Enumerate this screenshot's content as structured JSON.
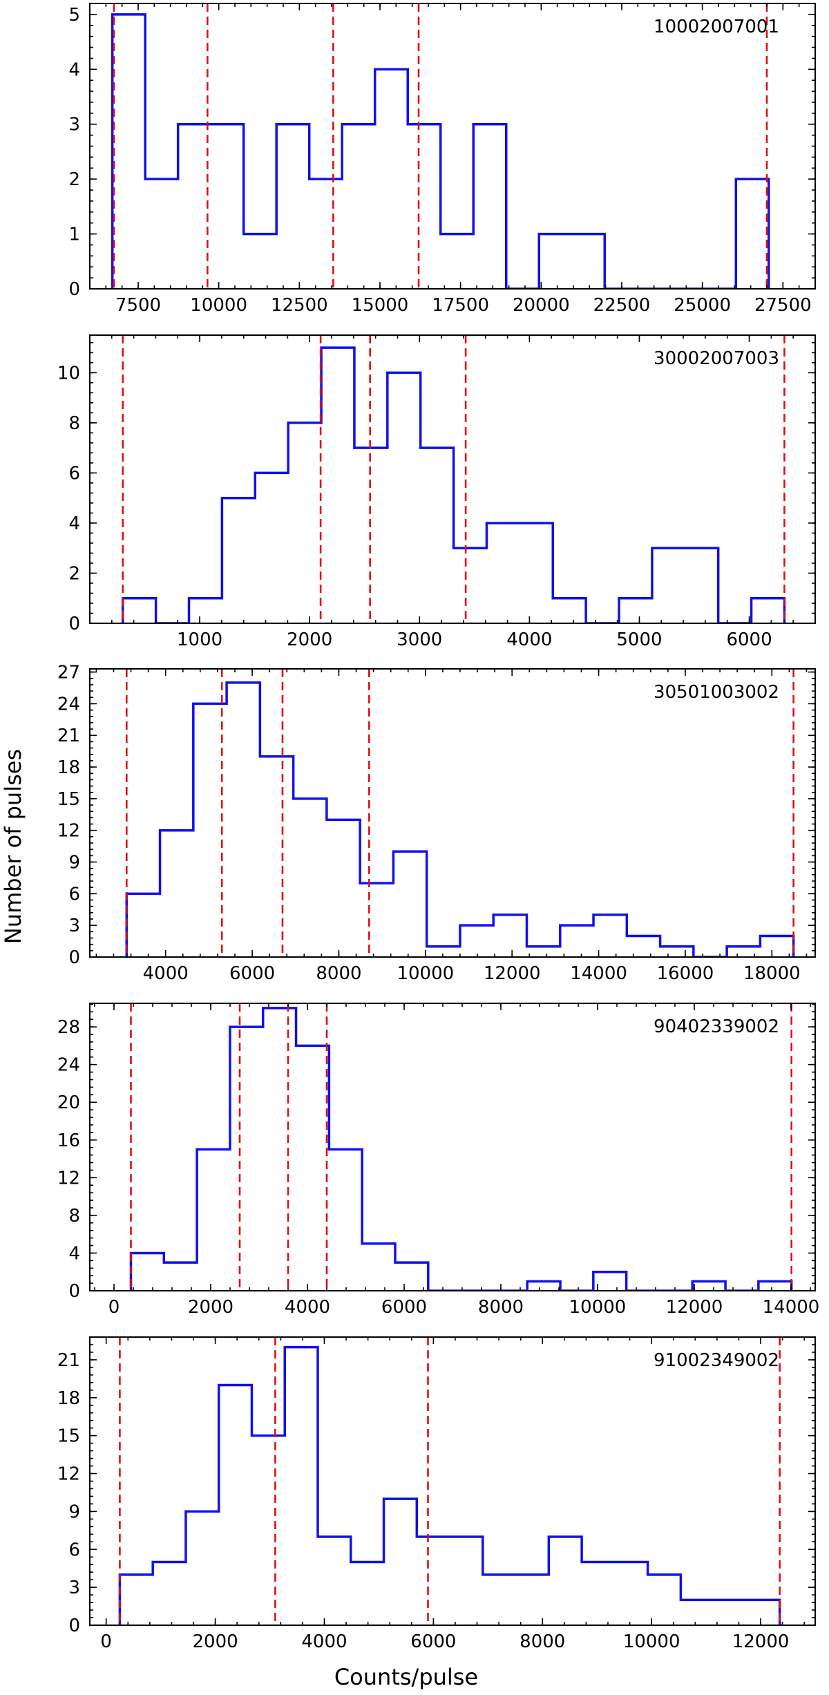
{
  "figure": {
    "xlabel": "Counts/pulse",
    "ylabel": "Number of pulses",
    "colors": {
      "histogram": "#1010ee",
      "boundary": "#e01010",
      "axes": "#000000"
    }
  },
  "chart_data": [
    {
      "type": "bar",
      "title": "10002007001",
      "xlim": [
        6000,
        28500
      ],
      "ylim": [
        0,
        5.2
      ],
      "xticks": [
        7500,
        10000,
        12500,
        15000,
        17500,
        20000,
        22500,
        25000,
        27500
      ],
      "yticks": [
        0,
        1,
        2,
        3,
        4,
        5
      ],
      "bin_edges": [
        6700,
        7718,
        8736,
        9754,
        10772,
        11790,
        12808,
        13826,
        14844,
        15862,
        16880,
        17898,
        18916,
        19934,
        20952,
        21970,
        22988,
        24006,
        25024,
        26042,
        27060
      ],
      "counts": [
        5,
        2,
        3,
        3,
        1,
        3,
        2,
        3,
        4,
        3,
        1,
        3,
        0,
        1,
        1,
        0,
        0,
        0,
        0,
        2
      ],
      "vlines": [
        6750,
        9650,
        13550,
        16200,
        27000
      ]
    },
    {
      "type": "bar",
      "title": "30002007003",
      "xlim": [
        0,
        6600
      ],
      "ylim": [
        0,
        11.5
      ],
      "xticks": [
        1000,
        2000,
        3000,
        4000,
        5000,
        6000
      ],
      "yticks": [
        0,
        2,
        4,
        6,
        8,
        10
      ],
      "bin_edges": [
        300,
        601,
        902,
        1203,
        1504,
        1805,
        2106,
        2407,
        2708,
        3009,
        3310,
        3611,
        3912,
        4213,
        4514,
        4815,
        5116,
        5417,
        5718,
        6019,
        6320
      ],
      "counts": [
        1,
        0,
        1,
        5,
        6,
        8,
        11,
        7,
        10,
        7,
        3,
        4,
        4,
        1,
        0,
        1,
        3,
        3,
        0,
        1
      ],
      "vlines": [
        300,
        2100,
        2550,
        3420,
        6320
      ]
    },
    {
      "type": "bar",
      "title": "30501003002",
      "xlim": [
        2250,
        19000
      ],
      "ylim": [
        0,
        27.3
      ],
      "xticks": [
        4000,
        6000,
        8000,
        10000,
        12000,
        14000,
        16000,
        18000
      ],
      "yticks": [
        0,
        3,
        6,
        9,
        12,
        15,
        18,
        21,
        24,
        27
      ],
      "bin_edges": [
        3100,
        3870,
        4640,
        5410,
        6180,
        6950,
        7720,
        8490,
        9260,
        10030,
        10800,
        11570,
        12340,
        13110,
        13880,
        14650,
        15420,
        16190,
        16960,
        17730,
        18500
      ],
      "counts": [
        6,
        12,
        24,
        26,
        19,
        15,
        13,
        7,
        10,
        1,
        3,
        4,
        1,
        3,
        4,
        2,
        1,
        0,
        1,
        2
      ],
      "vlines": [
        3100,
        5300,
        6700,
        8700,
        18500
      ]
    },
    {
      "type": "bar",
      "title": "90402339002",
      "xlim": [
        -500,
        14500
      ],
      "ylim": [
        0,
        30.5
      ],
      "xticks": [
        0,
        2000,
        4000,
        6000,
        8000,
        10000,
        12000,
        14000
      ],
      "yticks": [
        0,
        4,
        8,
        12,
        16,
        20,
        24,
        28
      ],
      "bin_edges": [
        350,
        1033,
        1716,
        2399,
        3082,
        3765,
        4448,
        5131,
        5814,
        6497,
        7180,
        7863,
        8546,
        9229,
        9912,
        10595,
        11278,
        11961,
        12644,
        13327,
        14010
      ],
      "counts": [
        4,
        3,
        15,
        28,
        30,
        26,
        15,
        5,
        3,
        0,
        0,
        0,
        1,
        0,
        2,
        0,
        0,
        1,
        0,
        1
      ],
      "vlines": [
        350,
        2600,
        3600,
        4400,
        14010
      ]
    },
    {
      "type": "bar",
      "title": "91002349002",
      "xlim": [
        -300,
        13000
      ],
      "ylim": [
        0,
        22.8
      ],
      "xticks": [
        0,
        2000,
        4000,
        6000,
        8000,
        10000,
        12000
      ],
      "yticks": [
        0,
        3,
        6,
        9,
        12,
        15,
        18,
        21
      ],
      "bin_edges": [
        250,
        855,
        1460,
        2065,
        2670,
        3275,
        3880,
        4485,
        5090,
        5695,
        6300,
        6905,
        7510,
        8115,
        8720,
        9325,
        9930,
        10535,
        11140,
        11745,
        12350
      ],
      "counts": [
        4,
        5,
        9,
        19,
        15,
        22,
        7,
        5,
        10,
        7,
        7,
        4,
        4,
        7,
        5,
        5,
        4,
        2,
        2,
        2
      ],
      "vlines": [
        250,
        3100,
        5900,
        12350
      ]
    }
  ]
}
